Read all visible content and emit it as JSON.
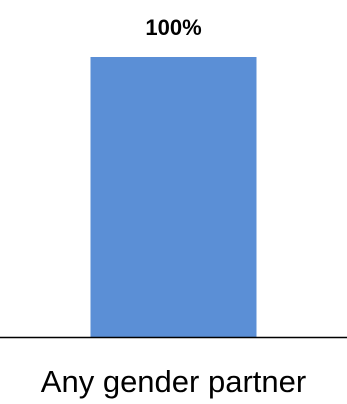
{
  "chart_data": {
    "type": "bar",
    "categories": [
      "Any gender partner"
    ],
    "values": [
      100
    ],
    "data_labels": [
      "100%"
    ],
    "ylim": [
      0,
      100
    ],
    "grid": false,
    "legend": "none",
    "bar_color": "#5B8FD6",
    "axis_color": "#000000"
  }
}
